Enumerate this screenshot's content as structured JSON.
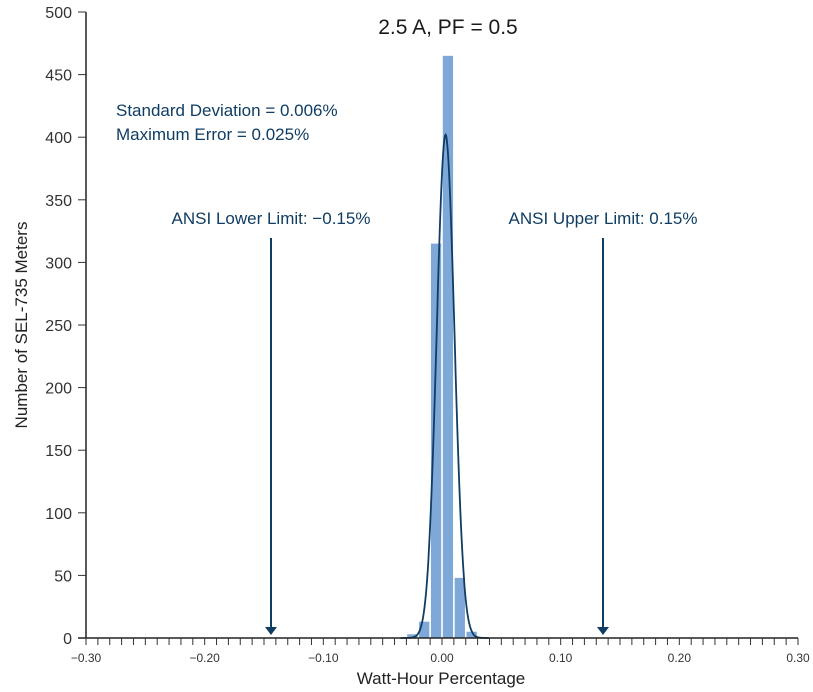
{
  "chart_data": {
    "type": "bar",
    "subtype": "histogram-with-normal-fit",
    "title": "2.5 A, PF = 0.5",
    "xlabel": "Watt-Hour  Percentage",
    "ylabel": "Number of SEL-735 Meters",
    "xlim": [
      -0.3,
      0.3
    ],
    "ylim": [
      0,
      500
    ],
    "x_ticks": [
      "−0.30",
      "−0.20",
      "−0.10",
      "0.00",
      "0.10",
      "0.20",
      "0.30"
    ],
    "x_tick_values": [
      -0.3,
      -0.2,
      -0.1,
      0.0,
      0.1,
      0.2,
      0.3
    ],
    "x_minor_tick_step": 0.01,
    "y_ticks": [
      "0",
      "50",
      "100",
      "150",
      "200",
      "250",
      "300",
      "350",
      "400",
      "450",
      "500"
    ],
    "y_tick_values": [
      0,
      50,
      100,
      150,
      200,
      250,
      300,
      350,
      400,
      450,
      500
    ],
    "grid": false,
    "bins": [
      {
        "start": -0.03,
        "end": -0.02,
        "count": 3
      },
      {
        "start": -0.02,
        "end": -0.01,
        "count": 13
      },
      {
        "start": -0.01,
        "end": 0.0,
        "count": 315
      },
      {
        "start": 0.0,
        "end": 0.01,
        "count": 465
      },
      {
        "start": 0.01,
        "end": 0.02,
        "count": 48
      },
      {
        "start": 0.02,
        "end": 0.03,
        "count": 5
      }
    ],
    "fit_curve": {
      "type": "normal",
      "mean": 0.003,
      "peak": 402,
      "color": "#0f3d63"
    },
    "bar_color": "#7ea8d8",
    "annotations": [
      {
        "text": "Standard Deviation = 0.006%"
      },
      {
        "text": "Maximum Error = 0.025%"
      },
      {
        "text": "ANSI Lower Limit: −0.15%",
        "arrow_x": -0.15
      },
      {
        "text": "ANSI Upper Limit: 0.15%",
        "arrow_x": 0.15
      }
    ]
  },
  "labels": {
    "title": "2.5 A, PF = 0.5",
    "std_dev": "Standard Deviation = 0.006%",
    "max_error": "Maximum Error = 0.025%",
    "lower_limit": "ANSI Lower Limit: −0.15%",
    "upper_limit": "ANSI Upper Limit: 0.15%",
    "xlabel": "Watt-Hour  Percentage",
    "ylabel": "Number of SEL-735 Meters"
  },
  "colors": {
    "bar": "#7ea8d8",
    "curve": "#0f3d63",
    "annotation": "#0f3d63",
    "axis": "#222222"
  }
}
